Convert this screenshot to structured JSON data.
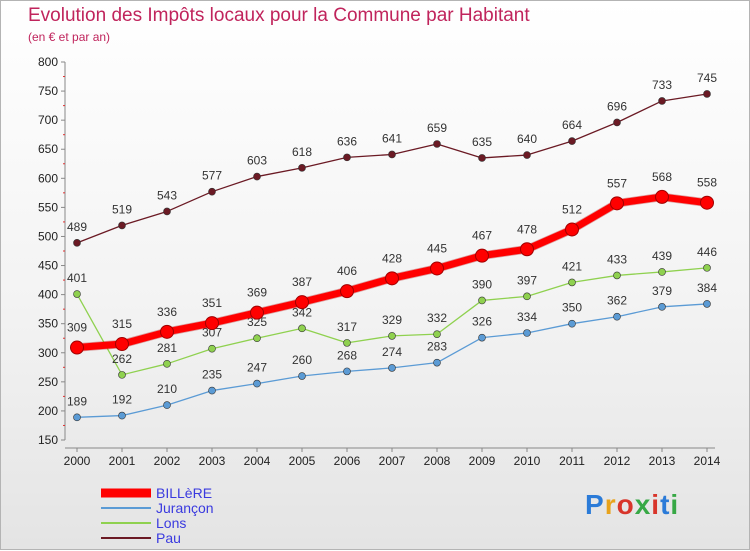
{
  "header": {
    "title": "Evolution des Impôts locaux pour la Commune par Habitant",
    "subtitle": "(en € et par an)"
  },
  "logo": "Proxiti",
  "chart_data": {
    "type": "line",
    "title": "Evolution des Impôts locaux pour la Commune par Habitant",
    "subtitle": "(en € et par an)",
    "x": [
      "2000",
      "2001",
      "2002",
      "2003",
      "2004",
      "2005",
      "2006",
      "2007",
      "2008",
      "2009",
      "2010",
      "2011",
      "2012",
      "2013",
      "2014"
    ],
    "ylim": [
      150,
      800
    ],
    "yticks": [
      150,
      200,
      250,
      300,
      350,
      400,
      450,
      500,
      550,
      600,
      650,
      700,
      750,
      800
    ],
    "grid": false,
    "legend": "bottom-left",
    "series": [
      {
        "name": "Pau",
        "color": "#6b1a24",
        "emphasis": false,
        "values": [
          489,
          519,
          543,
          577,
          603,
          618,
          636,
          641,
          659,
          635,
          640,
          664,
          696,
          733,
          745
        ]
      },
      {
        "name": "Lons",
        "color": "#8fd14f",
        "emphasis": false,
        "values": [
          401,
          262,
          281,
          307,
          325,
          342,
          317,
          329,
          332,
          390,
          397,
          421,
          433,
          439,
          446
        ]
      },
      {
        "name": "Jurançon",
        "color": "#5b9bd5",
        "emphasis": false,
        "values": [
          189,
          192,
          210,
          235,
          247,
          260,
          268,
          274,
          283,
          326,
          334,
          350,
          362,
          379,
          384
        ]
      },
      {
        "name": "BILLèRE",
        "color": "#ff0000",
        "emphasis": true,
        "values": [
          309,
          315,
          336,
          351,
          369,
          387,
          406,
          428,
          445,
          467,
          478,
          512,
          557,
          568,
          558
        ]
      }
    ],
    "legend_order": [
      "BILLèRE",
      "Jurançon",
      "Lons",
      "Pau"
    ]
  }
}
